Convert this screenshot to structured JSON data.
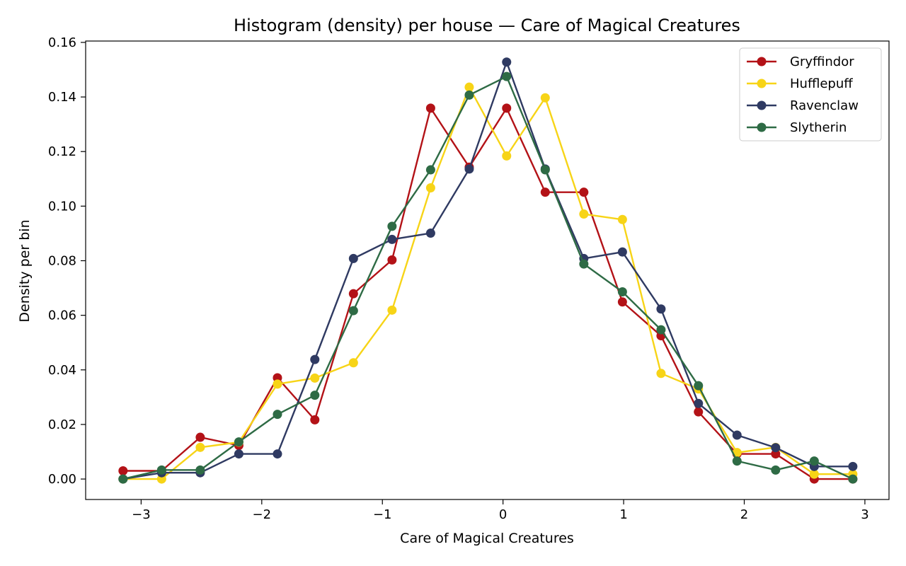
{
  "chart_data": {
    "type": "line",
    "title": "Histogram (density) per house — Care of Magical Creatures",
    "xlabel": "Care of Magical Creatures",
    "ylabel": "Density per bin",
    "xlim": [
      -3.46,
      3.2
    ],
    "ylim": [
      -0.0075,
      0.1605
    ],
    "xticks": [
      -3,
      -2,
      -1,
      0,
      1,
      2,
      3
    ],
    "xtick_labels": [
      "−3",
      "−2",
      "−1",
      "0",
      "1",
      "2",
      "3"
    ],
    "yticks": [
      0.0,
      0.02,
      0.04,
      0.06,
      0.08,
      0.1,
      0.12,
      0.14,
      0.16
    ],
    "ytick_labels": [
      "0.00",
      "0.02",
      "0.04",
      "0.06",
      "0.08",
      "0.10",
      "0.12",
      "0.14",
      "0.16"
    ],
    "grid": false,
    "legend_position": "top-right",
    "x": [
      -3.15,
      -2.83,
      -2.51,
      -2.19,
      -1.87,
      -1.56,
      -1.24,
      -0.92,
      -0.6,
      -0.28,
      0.03,
      0.35,
      0.67,
      0.99,
      1.31,
      1.62,
      1.94,
      2.26,
      2.58,
      2.9
    ],
    "series": [
      {
        "name": "Gryffindor",
        "color": "#b31217",
        "values": [
          0.003,
          0.003,
          0.0153,
          0.0123,
          0.0371,
          0.0217,
          0.0679,
          0.0803,
          0.1359,
          0.1143,
          0.1359,
          0.1051,
          0.1051,
          0.0649,
          0.0525,
          0.0246,
          0.0092,
          0.0092,
          0.0,
          0.0
        ]
      },
      {
        "name": "Hufflepuff",
        "color": "#f7d417",
        "values": [
          0.0,
          0.0,
          0.0116,
          0.0135,
          0.0348,
          0.037,
          0.0426,
          0.0619,
          0.1067,
          0.1436,
          0.1184,
          0.1397,
          0.0971,
          0.0951,
          0.0387,
          0.033,
          0.0097,
          0.0116,
          0.0018,
          0.0018
        ]
      },
      {
        "name": "Ravenclaw",
        "color": "#2f3a62",
        "values": [
          0.0,
          0.0023,
          0.0023,
          0.0092,
          0.0092,
          0.0438,
          0.0808,
          0.0878,
          0.0901,
          0.1136,
          0.1528,
          0.1136,
          0.0808,
          0.0832,
          0.0623,
          0.0277,
          0.0161,
          0.0115,
          0.0046,
          0.0046
        ]
      },
      {
        "name": "Slytherin",
        "color": "#2e6b45",
        "values": [
          0.0,
          0.0033,
          0.0033,
          0.0136,
          0.0237,
          0.0307,
          0.0617,
          0.0926,
          0.1133,
          0.1407,
          0.1475,
          0.1133,
          0.0788,
          0.0686,
          0.0547,
          0.0342,
          0.0066,
          0.0033,
          0.0066,
          0.0
        ]
      }
    ]
  }
}
